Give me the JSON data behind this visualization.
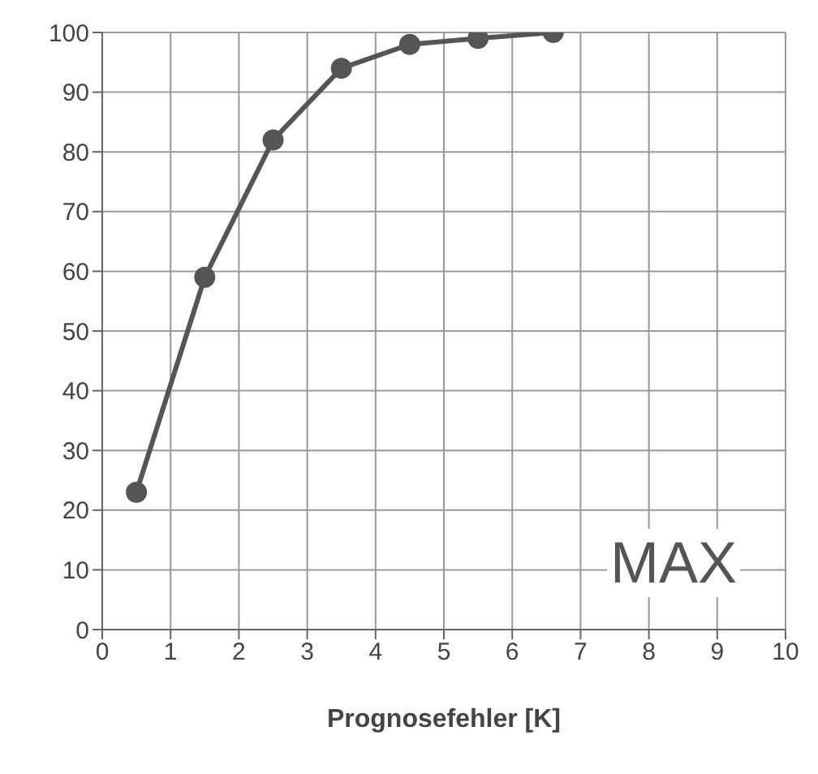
{
  "chart_data": {
    "type": "line",
    "xlabel": "Prognosefehler [K]",
    "x": [
      0.5,
      1.5,
      2.5,
      3.5,
      4.5,
      5.5,
      6.6
    ],
    "series": [
      {
        "color": "#555555",
        "values": [
          23,
          59,
          82,
          94,
          98,
          99,
          100
        ]
      }
    ],
    "xlim": [
      0,
      10
    ],
    "xticks": [
      0,
      1,
      2,
      3,
      4,
      5,
      6,
      7,
      8,
      9,
      10
    ],
    "ylim": [
      0,
      100
    ],
    "yticks": [
      0,
      10,
      20,
      30,
      40,
      50,
      60,
      70,
      80,
      90,
      100
    ],
    "grid": true,
    "marker": "circle",
    "line_style": "solid",
    "annotations": [
      "MAX"
    ]
  }
}
